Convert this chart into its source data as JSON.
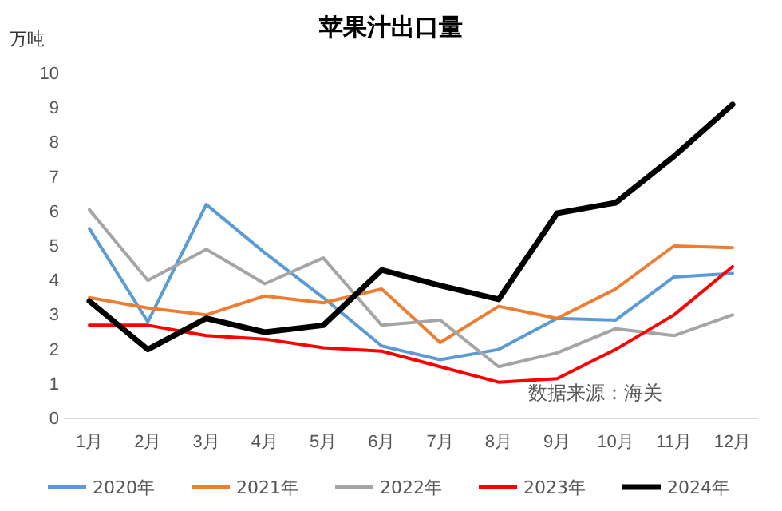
{
  "chart_data": {
    "type": "line",
    "title": "苹果汁出口量",
    "ylabel": "万吨",
    "categories": [
      "1月",
      "2月",
      "3月",
      "4月",
      "5月",
      "6月",
      "7月",
      "8月",
      "9月",
      "10月",
      "11月",
      "12月"
    ],
    "series": [
      {
        "name": "2020年",
        "color": "#5b9bd5",
        "values": [
          5.5,
          2.8,
          6.2,
          4.8,
          3.5,
          2.1,
          1.7,
          2.0,
          2.9,
          2.85,
          4.1,
          4.2
        ]
      },
      {
        "name": "2021年",
        "color": "#ed7d31",
        "values": [
          3.5,
          3.2,
          3.0,
          3.55,
          3.35,
          3.75,
          2.2,
          3.25,
          2.9,
          3.75,
          5.0,
          4.95
        ]
      },
      {
        "name": "2022年",
        "color": "#a5a5a5",
        "values": [
          6.05,
          4.0,
          4.9,
          3.9,
          4.65,
          2.7,
          2.85,
          1.5,
          1.9,
          2.6,
          2.4,
          3.0
        ]
      },
      {
        "name": "2023年",
        "color": "#ff0000",
        "values": [
          2.7,
          2.7,
          2.4,
          2.3,
          2.05,
          1.95,
          1.5,
          1.05,
          1.15,
          2.0,
          3.0,
          4.4
        ]
      },
      {
        "name": "2024年",
        "color": "#000000",
        "values": [
          3.4,
          2.0,
          2.9,
          2.5,
          2.7,
          4.3,
          3.85,
          3.45,
          5.95,
          6.25,
          7.6,
          9.1
        ]
      }
    ],
    "ylim": [
      0,
      10
    ],
    "yticks": [
      0,
      1,
      2,
      3,
      4,
      5,
      6,
      7,
      8,
      9,
      10
    ],
    "grid": false,
    "legend": "bottom",
    "marker": "none",
    "line_style": "solid",
    "annotations": [
      "数据来源：海关"
    ]
  }
}
